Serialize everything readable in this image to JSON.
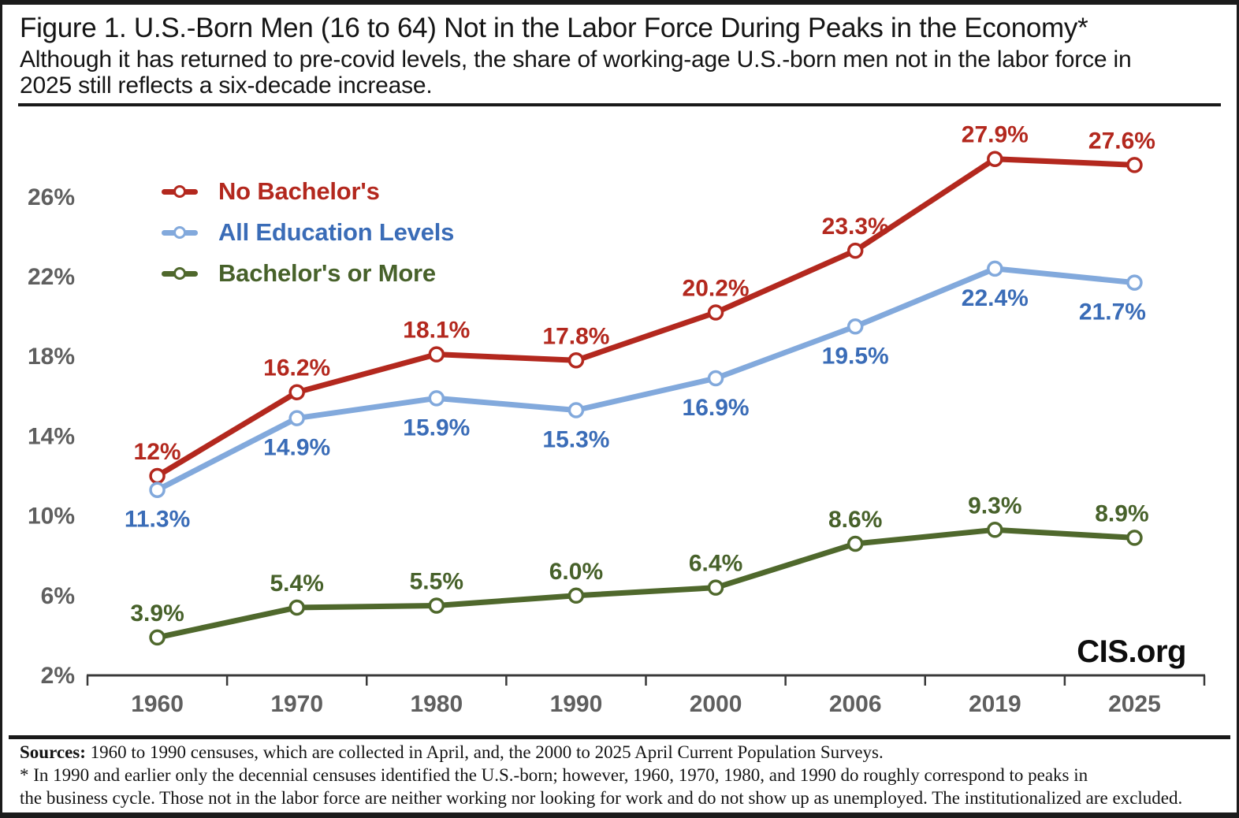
{
  "figure": {
    "title": "Figure 1. U.S.-Born Men (16 to 64) Not in the Labor Force During Peaks in the Economy*",
    "subtitle_lines": [
      "Although it has returned to pre-covid levels, the share of working-age U.S.-born men not in the labor force in",
      "2025 still reflects a six-decade increase."
    ],
    "brand": "CIS.org"
  },
  "chart_data": {
    "type": "line",
    "title": "U.S.-Born Men (16 to 64) Not in the Labor Force During Peaks in the Economy",
    "categories": [
      "1960",
      "1970",
      "1980",
      "1990",
      "2000",
      "2006",
      "2019",
      "2025"
    ],
    "series": [
      {
        "name": "No Bachelor's",
        "values": [
          12,
          16.2,
          18.1,
          17.8,
          20.2,
          23.3,
          27.9,
          27.6
        ],
        "point_labels": [
          "12%",
          "16.2%",
          "18.1%",
          "17.8%",
          "20.2%",
          "23.3%",
          "27.9%",
          "27.6%"
        ],
        "line_color": "#B3281E",
        "label_color": "#B3281E",
        "label_position": "above"
      },
      {
        "name": "All Education Levels",
        "values": [
          11.3,
          14.9,
          15.9,
          15.3,
          16.9,
          19.5,
          22.4,
          21.7
        ],
        "point_labels": [
          "11.3%",
          "14.9%",
          "15.9%",
          "15.3%",
          "16.9%",
          "19.5%",
          "22.4%",
          "21.7%"
        ],
        "line_color": "#82A9DC",
        "label_color": "#3A6CB7",
        "label_position": "below"
      },
      {
        "name": "Bachelor's or More",
        "values": [
          3.9,
          5.4,
          5.5,
          6.0,
          6.4,
          8.6,
          9.3,
          8.9
        ],
        "point_labels": [
          "3.9%",
          "5.4%",
          "5.5%",
          "6.0%",
          "6.4%",
          "8.6%",
          "9.3%",
          "8.9%"
        ],
        "line_color": "#4F682C",
        "label_color": "#47612A",
        "label_position": "above"
      }
    ],
    "x_tick_labels": [
      "1960",
      "1970",
      "1980",
      "1990",
      "2000",
      "2006",
      "2019",
      "2025"
    ],
    "y_tick_labels": [
      "2%",
      "6%",
      "10%",
      "14%",
      "18%",
      "22%",
      "26%"
    ],
    "y_tick_values": [
      2,
      6,
      10,
      14,
      18,
      22,
      26
    ],
    "ylim": [
      2,
      30
    ],
    "grid": false,
    "legend_position": "top-left",
    "axis_color": "#3a3a3a",
    "tick_label_color": "#5f5f5f"
  },
  "footer": {
    "sources_label": "Sources:",
    "sources_text": "1960 to 1990 censuses, which are collected in April, and, the 2000 to 2025 April Current Population Surveys.",
    "note_lines": [
      "* In 1990 and earlier only the decennial censuses identified the U.S.-born; however, 1960, 1970, 1980, and 1990 do roughly correspond to peaks in",
      "the business cycle. Those not in the labor force are neither working nor looking for work and do not show up as unemployed. The institutionalized are excluded."
    ]
  }
}
